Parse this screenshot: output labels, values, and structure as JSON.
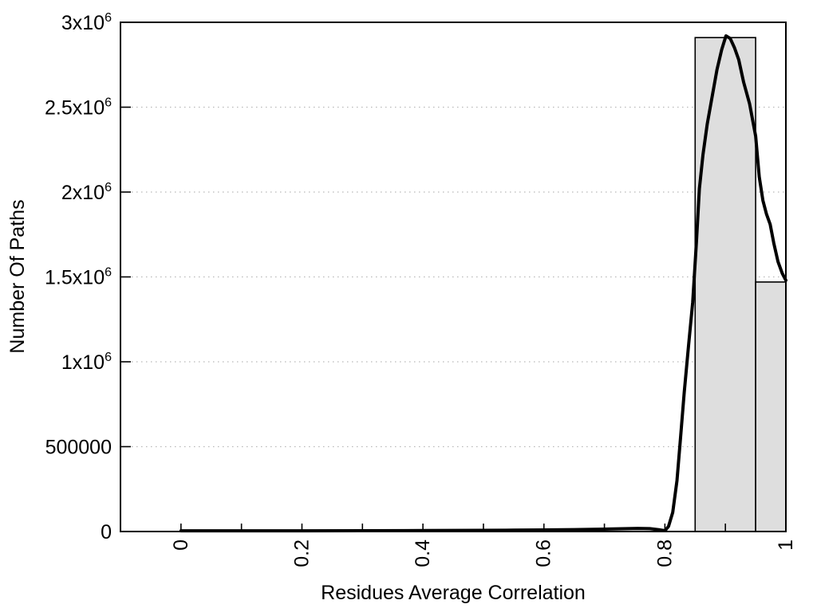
{
  "chart_data": {
    "type": "bar",
    "subtype": "histogram-with-fit-curve",
    "title": "",
    "xlabel": "Residues Average Correlation",
    "ylabel": "Number Of Paths",
    "xlim": [
      -0.1,
      1.0
    ],
    "ylim": [
      0,
      3000000
    ],
    "grid": "horizontal-dotted",
    "legend": "none",
    "colors": {
      "bar_fill": "#dedede",
      "bar_stroke": "#000000",
      "curve": "#000000",
      "grid": "#b8b8b8",
      "axis": "#000000"
    },
    "xticks": [
      {
        "v": 0.0,
        "label": "0"
      },
      {
        "v": 0.1,
        "label": ""
      },
      {
        "v": 0.2,
        "label": "0.2"
      },
      {
        "v": 0.3,
        "label": ""
      },
      {
        "v": 0.4,
        "label": "0.4"
      },
      {
        "v": 0.5,
        "label": ""
      },
      {
        "v": 0.6,
        "label": "0.6"
      },
      {
        "v": 0.7,
        "label": ""
      },
      {
        "v": 0.8,
        "label": "0.8"
      },
      {
        "v": 0.9,
        "label": ""
      },
      {
        "v": 1.0,
        "label": "1"
      }
    ],
    "yticks": [
      {
        "v": 0,
        "label": "0",
        "sup": "",
        "grid": false
      },
      {
        "v": 500000,
        "label": "500000",
        "sup": "",
        "grid": true
      },
      {
        "v": 1000000,
        "label": "1x10",
        "sup": "6",
        "grid": true
      },
      {
        "v": 1500000,
        "label": "1.5x10",
        "sup": "6",
        "grid": true
      },
      {
        "v": 2000000,
        "label": "2x10",
        "sup": "6",
        "grid": true
      },
      {
        "v": 2500000,
        "label": "2.5x10",
        "sup": "6",
        "grid": true
      },
      {
        "v": 3000000,
        "label": "3x10",
        "sup": "6",
        "grid": false
      }
    ],
    "bars": [
      {
        "x0": 0.85,
        "x1": 0.95,
        "center": 0.9,
        "value": 2910000
      },
      {
        "x0": 0.95,
        "x1": 1.0,
        "center": 1.0,
        "value": 1470000
      }
    ],
    "curve": {
      "name": "fit-curve",
      "points": [
        [
          0.0,
          4000
        ],
        [
          0.1,
          4000
        ],
        [
          0.2,
          4000
        ],
        [
          0.3,
          4500
        ],
        [
          0.4,
          5500
        ],
        [
          0.5,
          7000
        ],
        [
          0.55,
          8000
        ],
        [
          0.6,
          9500
        ],
        [
          0.65,
          11500
        ],
        [
          0.7,
          14000
        ],
        [
          0.73,
          16500
        ],
        [
          0.755,
          18500
        ],
        [
          0.775,
          17000
        ],
        [
          0.79,
          11000
        ],
        [
          0.8,
          4500
        ],
        [
          0.806,
          30000
        ],
        [
          0.813,
          113000
        ],
        [
          0.82,
          300000
        ],
        [
          0.826,
          560000
        ],
        [
          0.832,
          820000
        ],
        [
          0.839,
          1090000
        ],
        [
          0.846,
          1350000
        ],
        [
          0.852,
          1700000
        ],
        [
          0.857,
          2020000
        ],
        [
          0.863,
          2220000
        ],
        [
          0.87,
          2400000
        ],
        [
          0.878,
          2560000
        ],
        [
          0.886,
          2720000
        ],
        [
          0.894,
          2840000
        ],
        [
          0.901,
          2920000
        ],
        [
          0.908,
          2905000
        ],
        [
          0.915,
          2850000
        ],
        [
          0.922,
          2780000
        ],
        [
          0.93,
          2650000
        ],
        [
          0.94,
          2520000
        ],
        [
          0.95,
          2330000
        ],
        [
          0.956,
          2090000
        ],
        [
          0.962,
          1950000
        ],
        [
          0.968,
          1870000
        ],
        [
          0.974,
          1810000
        ],
        [
          0.98,
          1700000
        ],
        [
          0.987,
          1590000
        ],
        [
          0.994,
          1520000
        ],
        [
          1.0,
          1480000
        ]
      ]
    }
  }
}
